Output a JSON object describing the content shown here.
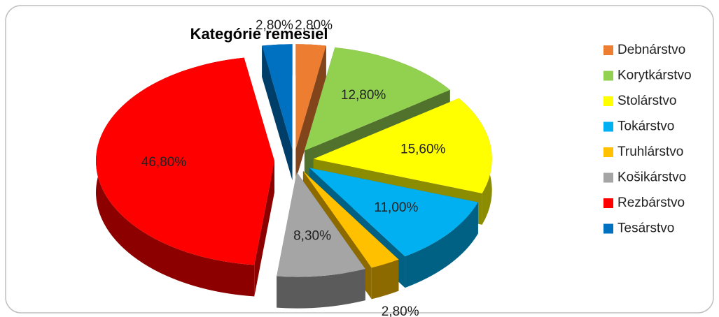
{
  "chart_data": {
    "type": "pie",
    "title": "Kategórie remesiel",
    "categories": [
      "Debnárstvo",
      "Korytkárstvo",
      "Stolárstvo",
      "Tokárstvo",
      "Truhlárstvo",
      "Košikárstvo",
      "Rezbárstvo",
      "Tesárstvo"
    ],
    "values": [
      2.8,
      12.8,
      15.6,
      11.0,
      2.8,
      8.3,
      46.8,
      2.8
    ],
    "value_labels": [
      "2,80%",
      "12,80%",
      "15,60%",
      "11,00%",
      "2,80%",
      "8,30%",
      "46,80%",
      "2,80%"
    ],
    "colors": [
      "#ed7d31",
      "#92d050",
      "#ffff00",
      "#00b0f0",
      "#ffc000",
      "#a5a5a5",
      "#ff0000",
      "#0070c0"
    ],
    "legend": "right"
  }
}
